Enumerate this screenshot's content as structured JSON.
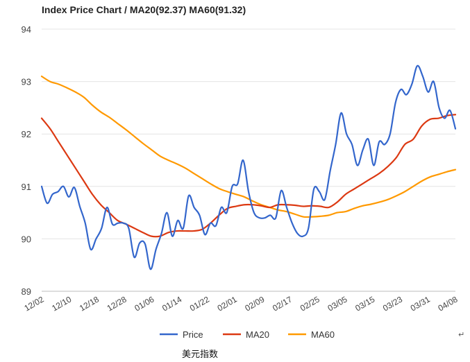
{
  "chart_data": {
    "type": "line",
    "title": "Index Price Chart / MA20(92.37) MA60(91.32)",
    "ylim": [
      89,
      94
    ],
    "yticks": [
      89,
      90,
      91,
      92,
      93,
      94
    ],
    "xtick_labels": [
      "12/02",
      "12/10",
      "12/18",
      "12/28",
      "01/06",
      "01/14",
      "01/22",
      "02/01",
      "02/09",
      "02/17",
      "02/25",
      "03/05",
      "03/15",
      "03/23",
      "03/31",
      "04/08"
    ],
    "grid": true,
    "legend_position": "bottom",
    "series": [
      {
        "name": "Price",
        "color": "#3366cc",
        "values": [
          91.0,
          90.68,
          90.85,
          90.9,
          91.0,
          90.8,
          90.98,
          90.62,
          90.3,
          89.8,
          90.0,
          90.2,
          90.6,
          90.28,
          90.3,
          90.3,
          90.2,
          89.65,
          89.92,
          89.9,
          89.42,
          89.8,
          90.1,
          90.5,
          90.05,
          90.35,
          90.2,
          90.82,
          90.6,
          90.45,
          90.08,
          90.3,
          90.25,
          90.6,
          90.5,
          91.0,
          91.05,
          91.5,
          90.9,
          90.5,
          90.4,
          90.4,
          90.45,
          90.4,
          90.92,
          90.6,
          90.3,
          90.1,
          90.05,
          90.2,
          90.95,
          90.9,
          90.75,
          91.3,
          91.8,
          92.4,
          92.0,
          91.8,
          91.4,
          91.7,
          91.9,
          91.4,
          91.85,
          91.8,
          92.0,
          92.6,
          92.85,
          92.75,
          92.95,
          93.3,
          93.1,
          92.8,
          93.0,
          92.5,
          92.3,
          92.45,
          92.1
        ]
      },
      {
        "name": "MA20",
        "color": "#dc3912",
        "values": [
          92.3,
          92.1,
          91.85,
          91.6,
          91.35,
          91.1,
          90.85,
          90.65,
          90.5,
          90.35,
          90.28,
          90.2,
          90.12,
          90.05,
          90.05,
          90.12,
          90.15,
          90.15,
          90.15,
          90.18,
          90.3,
          90.45,
          90.58,
          90.62,
          90.65,
          90.65,
          90.63,
          90.6,
          90.65,
          90.65,
          90.64,
          90.62,
          90.63,
          90.62,
          90.6,
          90.7,
          90.85,
          90.95,
          91.05,
          91.15,
          91.25,
          91.38,
          91.55,
          91.8,
          91.9,
          92.15,
          92.28,
          92.3,
          92.35,
          92.37
        ]
      },
      {
        "name": "MA60",
        "color": "#ff9900",
        "values": [
          93.1,
          93.0,
          92.95,
          92.88,
          92.8,
          92.7,
          92.55,
          92.42,
          92.32,
          92.2,
          92.08,
          91.95,
          91.82,
          91.7,
          91.58,
          91.5,
          91.43,
          91.35,
          91.25,
          91.15,
          91.05,
          90.96,
          90.9,
          90.85,
          90.8,
          90.72,
          90.65,
          90.6,
          90.55,
          90.52,
          90.47,
          90.42,
          90.42,
          90.43,
          90.45,
          90.5,
          90.52,
          90.58,
          90.63,
          90.66,
          90.7,
          90.75,
          90.82,
          90.9,
          91.0,
          91.1,
          91.18,
          91.23,
          91.28,
          91.32
        ]
      }
    ]
  },
  "caption": "美元指数",
  "return_mark": "↵"
}
